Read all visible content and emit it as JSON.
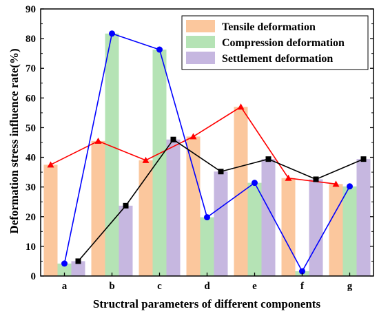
{
  "chart_data": {
    "type": "bar",
    "title": "",
    "xlabel": "Structral parameters of different components",
    "ylabel": "Deformation stress influence rate(%)",
    "ylim": [
      0,
      90
    ],
    "yticks": [
      0,
      10,
      20,
      30,
      40,
      50,
      60,
      70,
      80,
      90
    ],
    "categories": [
      "a",
      "b",
      "c",
      "d",
      "e",
      "f",
      "g"
    ],
    "legend_position": "top-right",
    "grid": false,
    "series": [
      {
        "name": "Tensile deformation",
        "color": "#fbc79d",
        "line_color": "#ff0000",
        "marker": "triangle",
        "values": [
          37.5,
          45.5,
          39,
          47,
          57,
          33,
          31
        ]
      },
      {
        "name": "Compression deformation",
        "color": "#b5e3b5",
        "line_color": "#0000ff",
        "marker": "circle",
        "values": [
          4.2,
          81.7,
          76.3,
          19.8,
          31.4,
          1.6,
          30.2
        ]
      },
      {
        "name": "Settlement deformation",
        "color": "#c6b7e0",
        "line_color": "#000000",
        "marker": "square",
        "values": [
          5,
          23.7,
          46,
          35.2,
          39.4,
          32.6,
          39.4
        ]
      }
    ]
  }
}
